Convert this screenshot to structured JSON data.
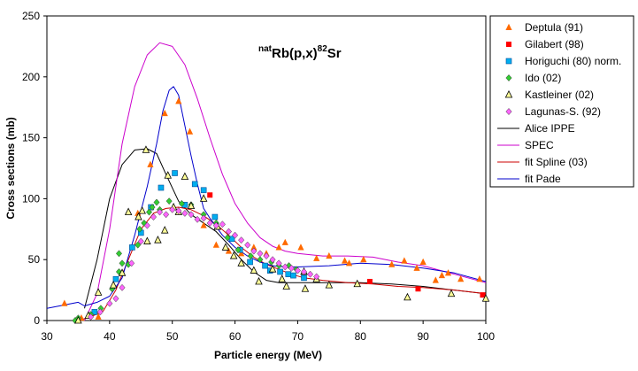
{
  "chart_data": {
    "type": "scatter",
    "title": {
      "pre_sup": "nat",
      "main": "Rb(p,x)",
      "sup": "82",
      "post": "Sr"
    },
    "xlabel": "Particle energy (MeV)",
    "ylabel": "Cross sections (mb)",
    "xlim": [
      30,
      100
    ],
    "ylim": [
      0,
      250
    ],
    "xticks": [
      "30",
      "40",
      "50",
      "60",
      "70",
      "80",
      "90",
      "100"
    ],
    "yticks": [
      "0",
      "50",
      "100",
      "150",
      "200",
      "250"
    ],
    "grid": false,
    "legend_position": "right",
    "series": [
      {
        "name": "Deptula (91)",
        "marker": "triangle",
        "color": "#ff6a00",
        "points": [
          [
            32.8,
            14
          ],
          [
            35.5,
            2
          ],
          [
            38.2,
            3
          ],
          [
            44.5,
            88
          ],
          [
            46.5,
            128
          ],
          [
            48.8,
            170
          ],
          [
            51,
            180
          ],
          [
            52.8,
            155
          ],
          [
            55,
            78
          ],
          [
            57,
            62
          ],
          [
            59,
            57
          ],
          [
            61,
            55
          ],
          [
            63,
            60
          ],
          [
            65,
            55
          ],
          [
            67,
            60
          ],
          [
            68,
            64
          ],
          [
            70.5,
            60
          ],
          [
            73,
            51
          ],
          [
            75,
            53
          ],
          [
            77.5,
            49
          ],
          [
            78.2,
            47
          ],
          [
            80.5,
            50
          ],
          [
            85,
            46
          ],
          [
            87,
            49
          ],
          [
            89,
            43
          ],
          [
            90,
            48
          ],
          [
            92,
            33
          ],
          [
            93,
            37
          ],
          [
            94,
            39
          ],
          [
            96,
            34
          ],
          [
            99,
            34
          ]
        ]
      },
      {
        "name": "Gilabert (98)",
        "marker": "square",
        "color": "#ff0000",
        "points": [
          [
            56,
            103
          ],
          [
            81.5,
            32
          ],
          [
            89.2,
            26
          ],
          [
            99.5,
            21
          ]
        ]
      },
      {
        "name": "Horiguchi (80) norm.",
        "marker": "square",
        "color": "#00aeef",
        "points": [
          [
            37.6,
            7
          ],
          [
            41,
            34
          ],
          [
            43.6,
            60
          ],
          [
            45,
            72
          ],
          [
            46.6,
            93
          ],
          [
            48.2,
            109
          ],
          [
            50.4,
            121
          ],
          [
            52,
            95
          ],
          [
            53.6,
            112
          ],
          [
            55,
            107
          ],
          [
            56.8,
            85
          ],
          [
            59.5,
            67
          ],
          [
            60.8,
            58
          ],
          [
            62.4,
            48
          ],
          [
            64.8,
            45
          ],
          [
            65.6,
            41
          ],
          [
            67.2,
            40
          ],
          [
            68.5,
            38
          ],
          [
            69.3,
            37
          ],
          [
            71,
            35
          ]
        ]
      },
      {
        "name": "Ido (02)",
        "marker": "diamond",
        "color": "#33cc33",
        "points": [
          [
            34.5,
            0
          ],
          [
            35,
            2
          ],
          [
            37,
            5
          ],
          [
            38.6,
            10
          ],
          [
            40.4,
            26
          ],
          [
            41.5,
            40
          ],
          [
            41.5,
            55
          ],
          [
            42,
            47
          ],
          [
            43,
            46
          ],
          [
            44.5,
            62
          ],
          [
            44.8,
            75
          ],
          [
            45.5,
            80
          ],
          [
            46.3,
            89
          ],
          [
            46.8,
            93
          ],
          [
            47.5,
            97
          ],
          [
            48,
            91
          ],
          [
            49.5,
            98
          ],
          [
            51.5,
            96
          ],
          [
            53,
            95
          ],
          [
            55,
            87
          ],
          [
            57,
            80
          ],
          [
            58.8,
            68
          ],
          [
            60.5,
            58
          ],
          [
            62.5,
            53
          ],
          [
            64,
            50
          ],
          [
            65.8,
            48
          ],
          [
            67,
            45
          ],
          [
            68.6,
            45
          ],
          [
            69.8,
            42
          ]
        ]
      },
      {
        "name": "Kastleiner (02)",
        "marker": "triangle",
        "color": "#ffff99",
        "points": [
          [
            35,
            0
          ],
          [
            36.6,
            4
          ],
          [
            38.2,
            23
          ],
          [
            40.6,
            29
          ],
          [
            42,
            39
          ],
          [
            43,
            89
          ],
          [
            44.6,
            85
          ],
          [
            45.2,
            90
          ],
          [
            45.8,
            140
          ],
          [
            46,
            65
          ],
          [
            47.7,
            66
          ],
          [
            48.8,
            74
          ],
          [
            49.3,
            119
          ],
          [
            50.2,
            93
          ],
          [
            51,
            89
          ],
          [
            52,
            118
          ],
          [
            53,
            94
          ],
          [
            55,
            100
          ],
          [
            57.2,
            77
          ],
          [
            58.5,
            60
          ],
          [
            59.8,
            53
          ],
          [
            61,
            47
          ],
          [
            63,
            41
          ],
          [
            63.8,
            32
          ],
          [
            66,
            42
          ],
          [
            67.5,
            34
          ],
          [
            68.2,
            28
          ],
          [
            71,
            40
          ],
          [
            71.2,
            26
          ],
          [
            73,
            34
          ],
          [
            75,
            29
          ],
          [
            79.5,
            30
          ],
          [
            87.5,
            19
          ],
          [
            94.5,
            22
          ],
          [
            100,
            18
          ]
        ]
      },
      {
        "name": "Lagunas-S. (92)",
        "marker": "diamond",
        "color": "#ff66ff",
        "points": [
          [
            37,
            3
          ],
          [
            38.5,
            7
          ],
          [
            40,
            14
          ],
          [
            41,
            18
          ],
          [
            42,
            27
          ],
          [
            43.5,
            47
          ],
          [
            45,
            65
          ],
          [
            46,
            78
          ],
          [
            47,
            85
          ],
          [
            48,
            89
          ],
          [
            49,
            87
          ],
          [
            50,
            91
          ],
          [
            51,
            90
          ],
          [
            52,
            88
          ],
          [
            53,
            87
          ],
          [
            54,
            83
          ],
          [
            55,
            84
          ],
          [
            56,
            80
          ],
          [
            57,
            78
          ],
          [
            58,
            79
          ],
          [
            59,
            73
          ],
          [
            60,
            70
          ],
          [
            61,
            66
          ],
          [
            62,
            62
          ],
          [
            63,
            57
          ],
          [
            64,
            55
          ],
          [
            65,
            53
          ],
          [
            66,
            50
          ],
          [
            67,
            47
          ],
          [
            68,
            44
          ],
          [
            69,
            43
          ],
          [
            70,
            41
          ],
          [
            71,
            40
          ],
          [
            72,
            38
          ],
          [
            73,
            36
          ]
        ]
      },
      {
        "name": "Alice IPPE",
        "line": true,
        "color": "#000000",
        "points": [
          [
            36,
            10
          ],
          [
            38,
            50
          ],
          [
            40,
            100
          ],
          [
            42,
            128
          ],
          [
            44,
            140
          ],
          [
            46,
            141
          ],
          [
            47.5,
            137
          ],
          [
            49,
            120
          ],
          [
            51,
            98
          ],
          [
            53,
            87
          ],
          [
            55,
            80
          ],
          [
            57,
            73
          ],
          [
            59,
            62
          ],
          [
            61,
            50
          ],
          [
            63,
            40
          ],
          [
            65,
            33
          ],
          [
            67,
            31
          ],
          [
            70,
            31
          ],
          [
            75,
            31
          ],
          [
            80,
            31
          ],
          [
            85,
            30
          ],
          [
            90,
            28
          ],
          [
            95,
            25
          ],
          [
            100,
            22
          ]
        ]
      },
      {
        "name": "SPEC",
        "line": true,
        "color": "#cc00cc",
        "points": [
          [
            36,
            0
          ],
          [
            38,
            22
          ],
          [
            40,
            75
          ],
          [
            42,
            145
          ],
          [
            44,
            192
          ],
          [
            46,
            218
          ],
          [
            48,
            228
          ],
          [
            50,
            225
          ],
          [
            52,
            210
          ],
          [
            54,
            182
          ],
          [
            56,
            150
          ],
          [
            58,
            120
          ],
          [
            60,
            96
          ],
          [
            62,
            80
          ],
          [
            64,
            68
          ],
          [
            66,
            61
          ],
          [
            68,
            57
          ],
          [
            70,
            55
          ],
          [
            74,
            53
          ],
          [
            78,
            53
          ],
          [
            82,
            52
          ],
          [
            86,
            48
          ],
          [
            90,
            45
          ],
          [
            95,
            38
          ],
          [
            100,
            31
          ]
        ]
      },
      {
        "name": "fit Spline (03)",
        "line": true,
        "color": "#cc0000",
        "points": [
          [
            35,
            0
          ],
          [
            37,
            3
          ],
          [
            39,
            8
          ],
          [
            41,
            25
          ],
          [
            43,
            50
          ],
          [
            45,
            75
          ],
          [
            47,
            88
          ],
          [
            49,
            92
          ],
          [
            51,
            93
          ],
          [
            53,
            91
          ],
          [
            55,
            86
          ],
          [
            57,
            79
          ],
          [
            59,
            70
          ],
          [
            61,
            60
          ],
          [
            63,
            52
          ],
          [
            65,
            46
          ],
          [
            67,
            42
          ],
          [
            69,
            38
          ],
          [
            71,
            35
          ],
          [
            74,
            33
          ],
          [
            78,
            31
          ],
          [
            82,
            30
          ],
          [
            86,
            28
          ],
          [
            90,
            27
          ],
          [
            95,
            25
          ],
          [
            100,
            22
          ]
        ]
      },
      {
        "name": "fit Pade",
        "line": true,
        "color": "#0000cc",
        "points": [
          [
            30,
            10
          ],
          [
            32,
            12
          ],
          [
            34,
            14
          ],
          [
            35,
            15
          ],
          [
            36,
            12
          ],
          [
            38,
            15
          ],
          [
            40,
            20
          ],
          [
            42,
            35
          ],
          [
            44,
            70
          ],
          [
            46,
            110
          ],
          [
            47.5,
            145
          ],
          [
            48.5,
            172
          ],
          [
            49.5,
            189
          ],
          [
            50.2,
            192
          ],
          [
            51,
            185
          ],
          [
            52,
            160
          ],
          [
            53,
            135
          ],
          [
            54,
            112
          ],
          [
            55,
            92
          ],
          [
            56,
            84
          ],
          [
            58,
            70
          ],
          [
            60,
            60
          ],
          [
            62,
            53
          ],
          [
            64,
            48
          ],
          [
            66,
            45
          ],
          [
            68,
            44
          ],
          [
            70,
            44
          ],
          [
            75,
            45
          ],
          [
            80,
            47
          ],
          [
            85,
            46
          ],
          [
            90,
            43
          ],
          [
            95,
            39
          ],
          [
            100,
            32
          ]
        ]
      }
    ]
  }
}
